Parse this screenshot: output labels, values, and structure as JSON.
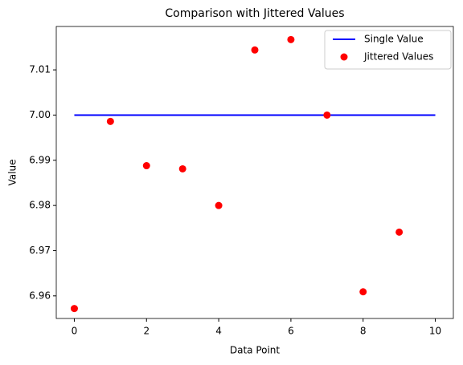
{
  "chart_data": {
    "type": "line",
    "title": "Comparison with Jittered Values",
    "x_label": "Data Point",
    "y_label": "Value",
    "xlim": [
      -0.5,
      10.5
    ],
    "xticks": [
      0,
      2,
      4,
      6,
      8,
      10
    ],
    "ylim": [
      6.955,
      7.0196
    ],
    "yticks": [
      6.96,
      6.97,
      6.98,
      6.99,
      {
        "value": 7,
        "label": "7.00"
      },
      7.01
    ],
    "legend": "upper right",
    "grid": false,
    "series": [
      {
        "name": "Single Value",
        "color": "#0000ff",
        "style": "line",
        "x": [
          0,
          10
        ],
        "values": [
          7,
          7
        ]
      },
      {
        "name": "Jittered Values",
        "color": "#ff0000",
        "style": "marker",
        "x": [
          0,
          1,
          2,
          3,
          4,
          5,
          6,
          7,
          8,
          9
        ],
        "values": [
          6.9572,
          6.9986,
          6.9888,
          6.9881,
          6.98,
          7.0144,
          7.0167,
          7.0,
          6.9609,
          6.9741
        ]
      }
    ]
  }
}
